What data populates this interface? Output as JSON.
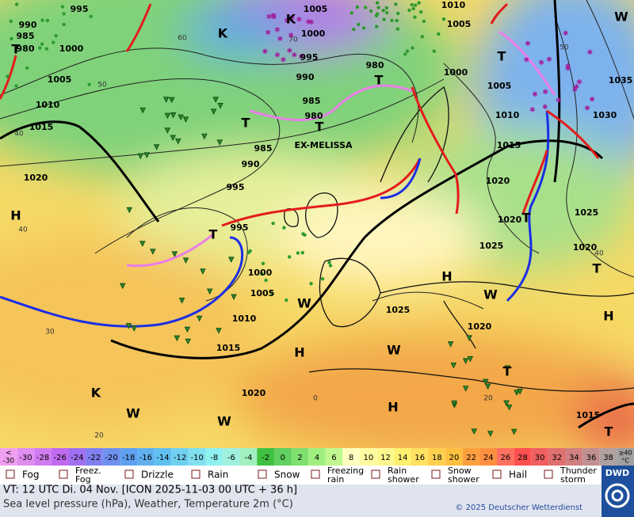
{
  "isobar_labels": [
    "995",
    "990",
    "985",
    "980",
    "1000",
    "1005",
    "1010",
    "1015",
    "1020",
    "1005",
    "1000",
    "995",
    "990",
    "985",
    "980",
    "985",
    "990",
    "995",
    "980",
    "1000",
    "1005",
    "1010",
    "1015",
    "1020",
    "1020",
    "1025",
    "1020",
    "1025",
    "1030",
    "1035",
    "1010",
    "1005",
    "995",
    "1000",
    "1005",
    "1010",
    "1015",
    "1020",
    "1025",
    "1020",
    "1015"
  ],
  "centers": [
    "H",
    "T",
    "T",
    "T",
    "T",
    "H",
    "H",
    "H",
    "H",
    "T",
    "T",
    "T",
    "T",
    "K",
    "K",
    "K",
    "W",
    "W",
    "W",
    "W",
    "W",
    "W",
    "T",
    "T"
  ],
  "isotherm_labels": [
    "60",
    "50",
    "40",
    "40",
    "30",
    "20",
    "0",
    "20",
    "40",
    "50",
    "70"
  ],
  "system_name": "EX-MELISSA",
  "temperature_scale": {
    "first": [
      "<",
      "-30"
    ],
    "values": [
      -30,
      -28,
      -26,
      -24,
      -22,
      -20,
      -18,
      -16,
      -14,
      -12,
      -10,
      -8,
      -6,
      -4,
      -2,
      0,
      2,
      4,
      6,
      8,
      10,
      12,
      14,
      16,
      18,
      20,
      22,
      24,
      26,
      28,
      30,
      32,
      34,
      36,
      38
    ],
    "last": [
      "≥40",
      "°C"
    ]
  },
  "legend": [
    "Fog",
    "Freez. Fog",
    "Drizzle",
    "Rain",
    "Snow",
    "Freezing rain",
    "Rain shower",
    "Snow shower",
    "Hail",
    "Thunder storm"
  ],
  "footer": {
    "valid_time": "VT: 12 UTC Di.  04 Nov. [ICON 2025-11-03  00 UTC + 36 h]",
    "description": "Sea level pressure (hPa), Weather, Temperature 2m (°C)",
    "copyright": "© 2025 Deutscher Wetterdienst",
    "logo": "DWD"
  }
}
